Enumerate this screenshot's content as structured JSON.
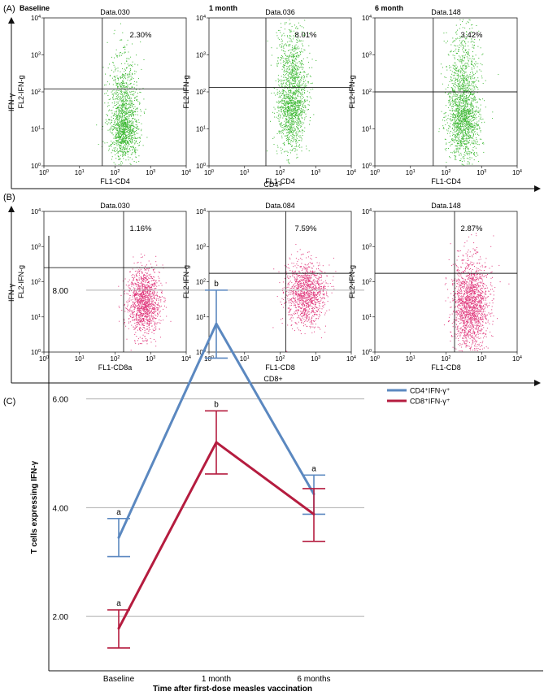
{
  "colors": {
    "cd4": "#5b88c0",
    "cd8": "#b51c3f",
    "dots_a": "#3cb833",
    "dots_b": "#e0387c",
    "grid": "#aeaeae"
  },
  "panel_a": {
    "label": "(A)",
    "y_axis_label": "IFN-γ",
    "x_axis_label": "CD4+",
    "plots": [
      {
        "header": "Baseline",
        "file": "Data.030",
        "percent": "2.30%",
        "xlabel": "FL1-CD4",
        "ylabel": "FL2-IFN-g"
      },
      {
        "header": "1 month",
        "file": "Data.036",
        "percent": "8.01%",
        "xlabel": "FL1-CD4",
        "ylabel": "FL2-IFN-g"
      },
      {
        "header": "6 month",
        "file": "Data.148",
        "percent": "3.42%",
        "xlabel": "FL1-CD4",
        "ylabel": "FL2-IFN-g"
      }
    ]
  },
  "panel_b": {
    "label": "(B)",
    "y_axis_label": "IFN-γ",
    "x_axis_label": "CD8+",
    "plots": [
      {
        "file": "Data.030",
        "percent": "1.16%",
        "xlabel": "FL1-CD8a",
        "ylabel": "FL2-IFN-g"
      },
      {
        "file": "Data.084",
        "percent": "7.59%",
        "xlabel": "FL1-CD8",
        "ylabel": "FL2-IFN-g"
      },
      {
        "file": "Data.148",
        "percent": "2.87%",
        "xlabel": "FL1-CD8",
        "ylabel": "FL2-IFN-g"
      }
    ]
  },
  "flow_ticks": {
    "base": "10",
    "x_exponents": [
      "0",
      "1",
      "2",
      "3",
      "4"
    ],
    "y_exponents": [
      "0",
      "1",
      "2",
      "3",
      "4"
    ]
  },
  "chart_data": {
    "type": "line",
    "label": "(C)",
    "title": "",
    "xlabel": "Time after first-dose measles vaccination",
    "ylabel": "T cells expressing IFN-γ",
    "categories": [
      "Baseline",
      "1 month",
      "6 months"
    ],
    "ylim": [
      1.0,
      9.0
    ],
    "yticks": [
      "2.00",
      "4.00",
      "6.00",
      "8.00"
    ],
    "ytick_values": [
      2,
      4,
      6,
      8
    ],
    "grid": true,
    "legend_position": "top-right",
    "series": [
      {
        "name": "CD4⁺IFN-γ⁺",
        "color": "#5b88c0",
        "values": [
          3.45,
          7.38,
          4.25
        ],
        "err_low": [
          3.1,
          6.75,
          3.88
        ],
        "err_high": [
          3.8,
          8.0,
          4.6
        ],
        "labels": [
          "a",
          "b",
          "a"
        ]
      },
      {
        "name": "CD8⁺IFN-γ⁺",
        "color": "#b51c3f",
        "values": [
          1.78,
          5.2,
          3.88
        ],
        "err_low": [
          1.42,
          4.62,
          3.38
        ],
        "err_high": [
          2.12,
          5.78,
          4.35
        ],
        "labels": [
          "a",
          "b",
          ""
        ]
      }
    ]
  }
}
